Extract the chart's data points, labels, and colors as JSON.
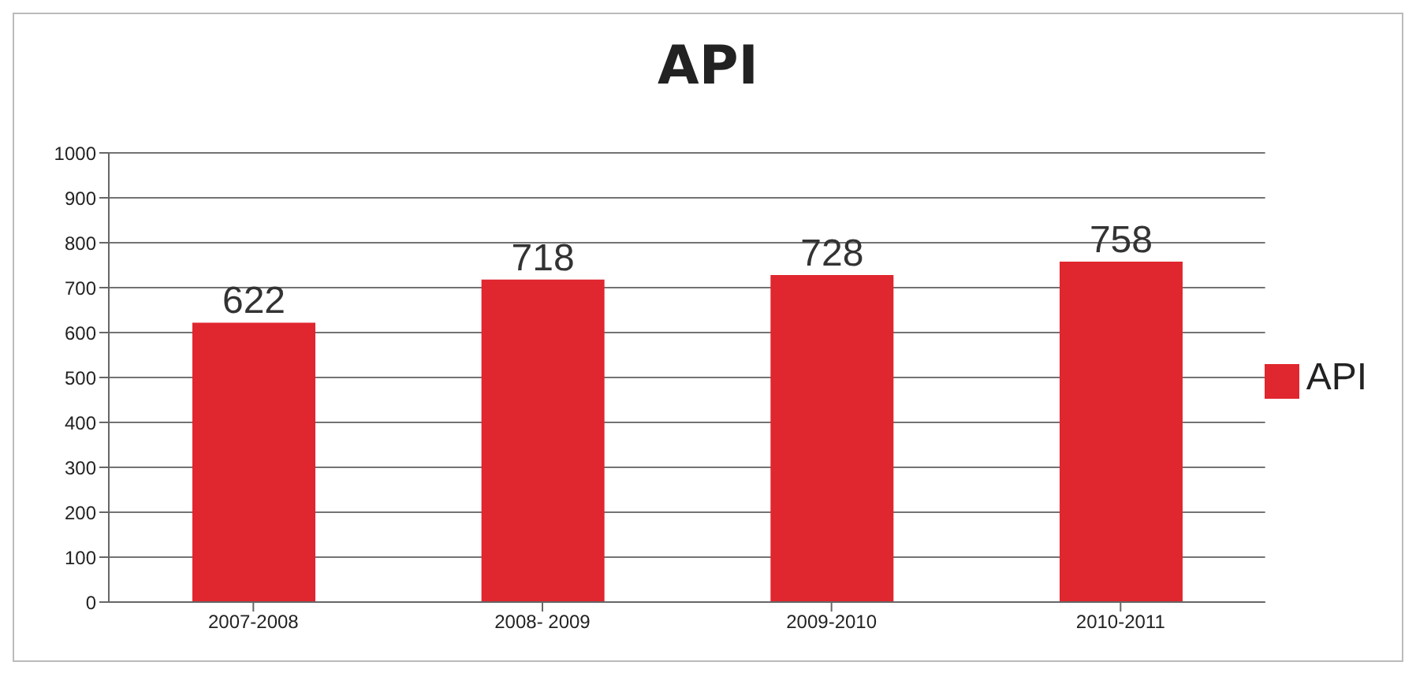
{
  "chart_data": {
    "type": "bar",
    "title": "API",
    "categories": [
      "2007-2008",
      "2008- 2009",
      "2009-2010",
      "2010-2011"
    ],
    "series": [
      {
        "name": "API",
        "color": "#e0262e",
        "values": [
          622,
          718,
          728,
          758
        ]
      }
    ],
    "ylim": [
      0,
      1000
    ],
    "yticks": [
      0,
      100,
      200,
      300,
      400,
      500,
      600,
      700,
      800,
      900,
      1000
    ],
    "grid": "y",
    "legend": "right",
    "data_labels": true
  }
}
